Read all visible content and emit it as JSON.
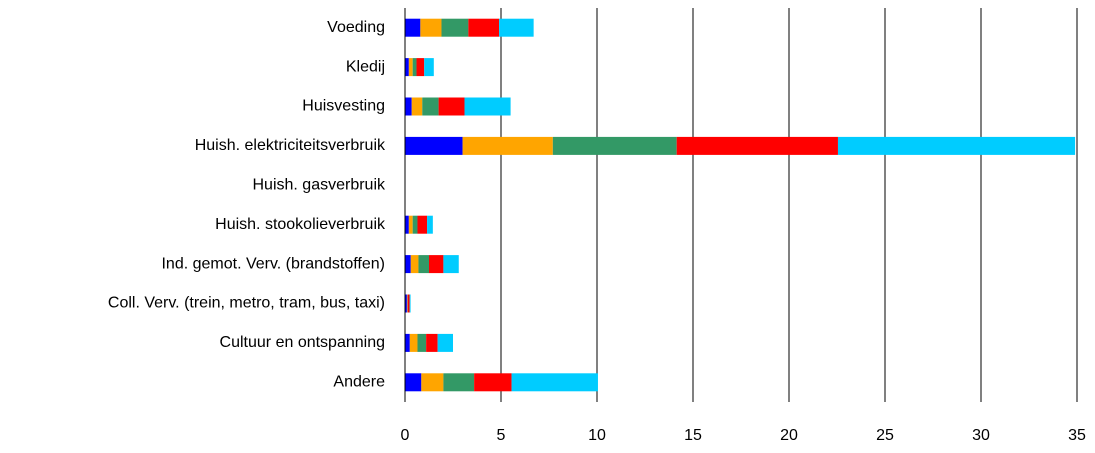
{
  "chart_data": {
    "type": "barh_stacked",
    "categories": [
      "Voeding",
      "Kledij",
      "Huisvesting",
      "Huish. elektriciteitsverbruik",
      "Huish. gasverbruik",
      "Huish. stookolieverbruik",
      "Ind. gemot. Verv. (brandstoffen)",
      "Coll. Verv. (trein, metro, tram, bus, taxi)",
      "Cultuur en ontspanning",
      "Andere"
    ],
    "series": [
      {
        "color": "#0000ff",
        "values": [
          0.8,
          0.2,
          0.35,
          3.0,
          0,
          0.2,
          0.3,
          0.1,
          0.25,
          0.85
        ]
      },
      {
        "color": "#ffa500",
        "values": [
          1.1,
          0.2,
          0.55,
          4.7,
          0,
          0.2,
          0.4,
          0.02,
          0.4,
          1.15
        ]
      },
      {
        "color": "#339966",
        "values": [
          1.4,
          0.2,
          0.85,
          6.45,
          0,
          0.25,
          0.55,
          0.02,
          0.45,
          1.6
        ]
      },
      {
        "color": "#ff0000",
        "values": [
          1.6,
          0.4,
          1.35,
          8.4,
          0,
          0.5,
          0.75,
          0.1,
          0.6,
          1.95
        ]
      },
      {
        "color": "#00ccff",
        "values": [
          1.8,
          0.5,
          2.4,
          12.35,
          0,
          0.3,
          0.8,
          0.05,
          0.8,
          4.5
        ]
      }
    ],
    "xlim": [
      0,
      35
    ],
    "xticks": [
      0,
      5,
      10,
      15,
      20,
      25,
      30,
      35
    ],
    "grid": true
  }
}
